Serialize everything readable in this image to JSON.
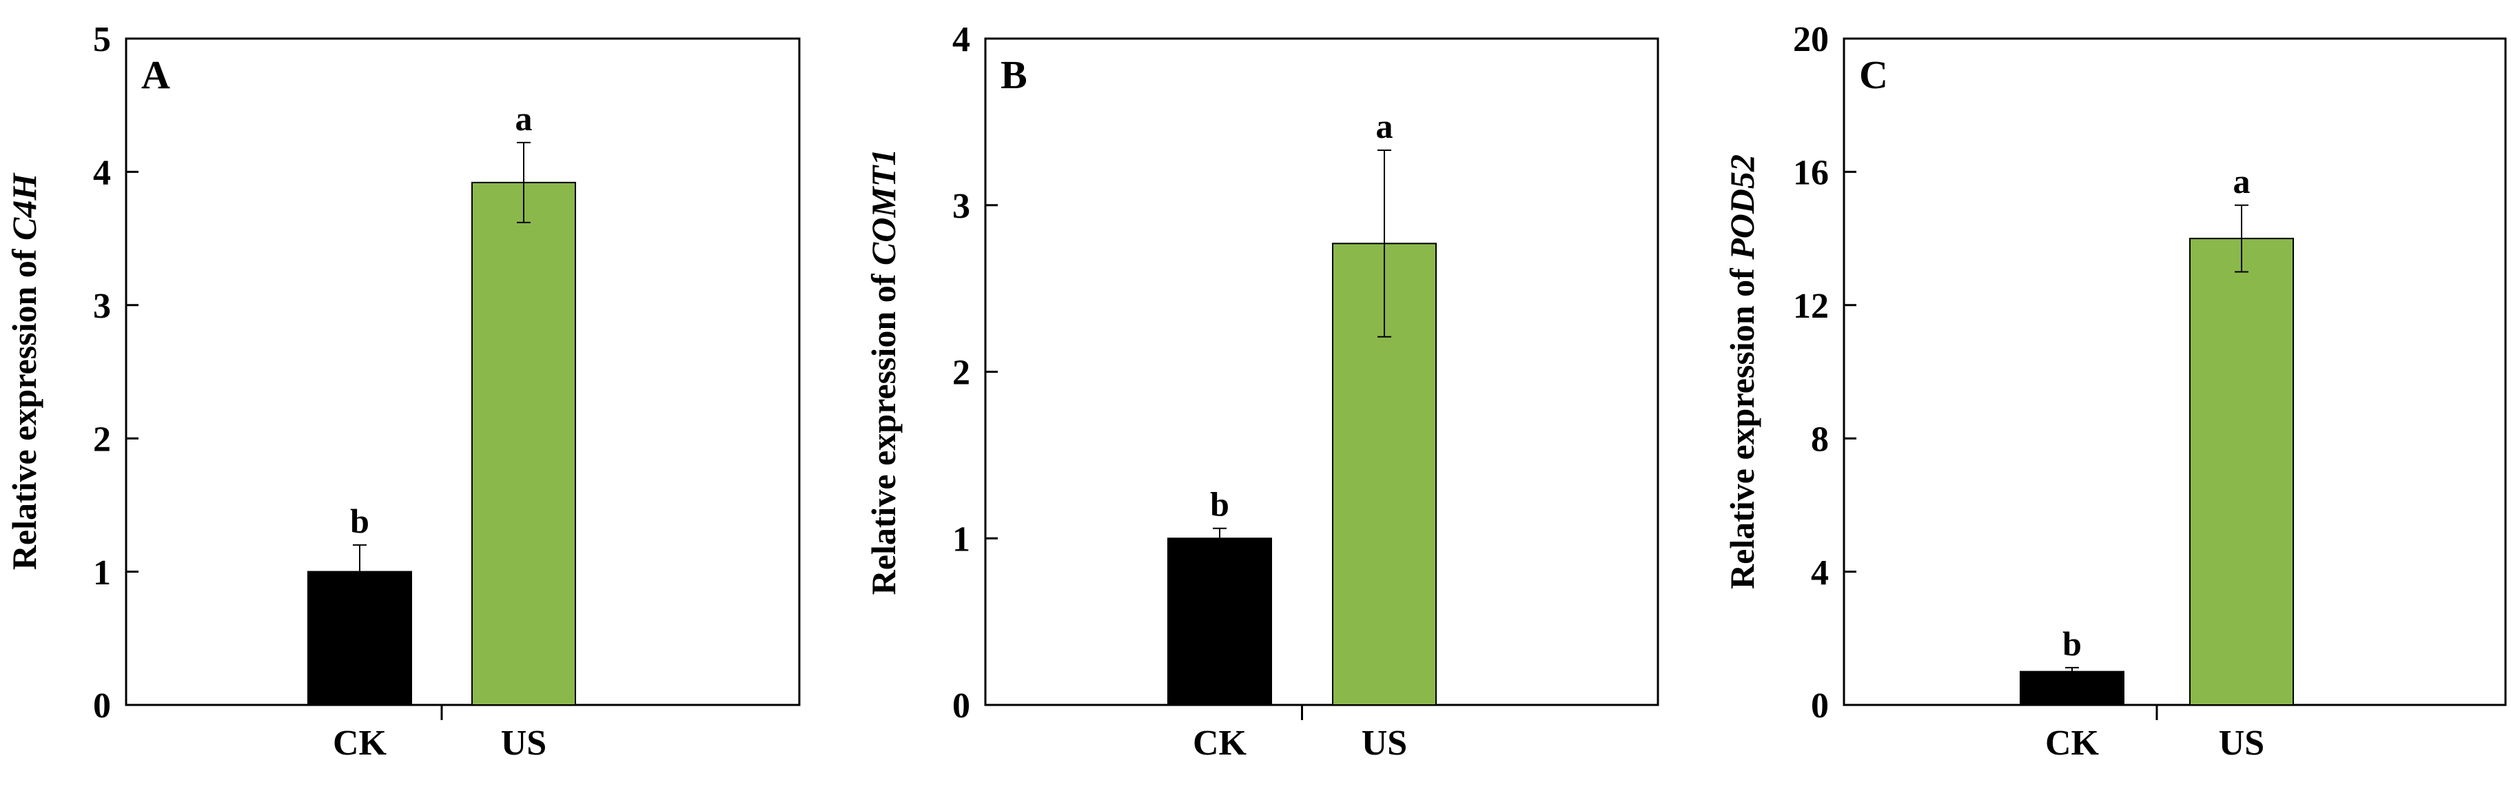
{
  "chart_data": [
    {
      "type": "bar",
      "panel_label": "A",
      "ylabel_prefix": "Relative expression of ",
      "ylabel_gene": "C4H",
      "categories": [
        "CK",
        "US"
      ],
      "values": [
        1.0,
        3.92
      ],
      "errors": [
        0.2,
        0.3
      ],
      "significance": [
        "b",
        "a"
      ],
      "colors": [
        "#000000",
        "#8bb84b"
      ],
      "ylim": [
        0,
        5
      ],
      "yticks": [
        "0",
        "1",
        "2",
        "3",
        "4",
        "5"
      ],
      "grid": false
    },
    {
      "type": "bar",
      "panel_label": "B",
      "ylabel_prefix": "Relative expression of ",
      "ylabel_gene": "COMT1",
      "categories": [
        "CK",
        "US"
      ],
      "values": [
        1.0,
        2.77
      ],
      "errors": [
        0.06,
        0.56
      ],
      "significance": [
        "b",
        "a"
      ],
      "colors": [
        "#000000",
        "#8bb84b"
      ],
      "ylim": [
        0,
        4
      ],
      "yticks": [
        "0",
        "1",
        "2",
        "3",
        "4"
      ],
      "grid": false
    },
    {
      "type": "bar",
      "panel_label": "C",
      "ylabel_prefix": "Relative expression of ",
      "ylabel_gene": "POD52",
      "categories": [
        "CK",
        "US"
      ],
      "values": [
        1.0,
        14.0
      ],
      "errors": [
        0.12,
        1.0
      ],
      "significance": [
        "b",
        "a"
      ],
      "colors": [
        "#000000",
        "#8bb84b"
      ],
      "ylim": [
        0,
        20
      ],
      "yticks": [
        "0",
        "4",
        "8",
        "12",
        "16",
        "20"
      ],
      "grid": false
    }
  ]
}
